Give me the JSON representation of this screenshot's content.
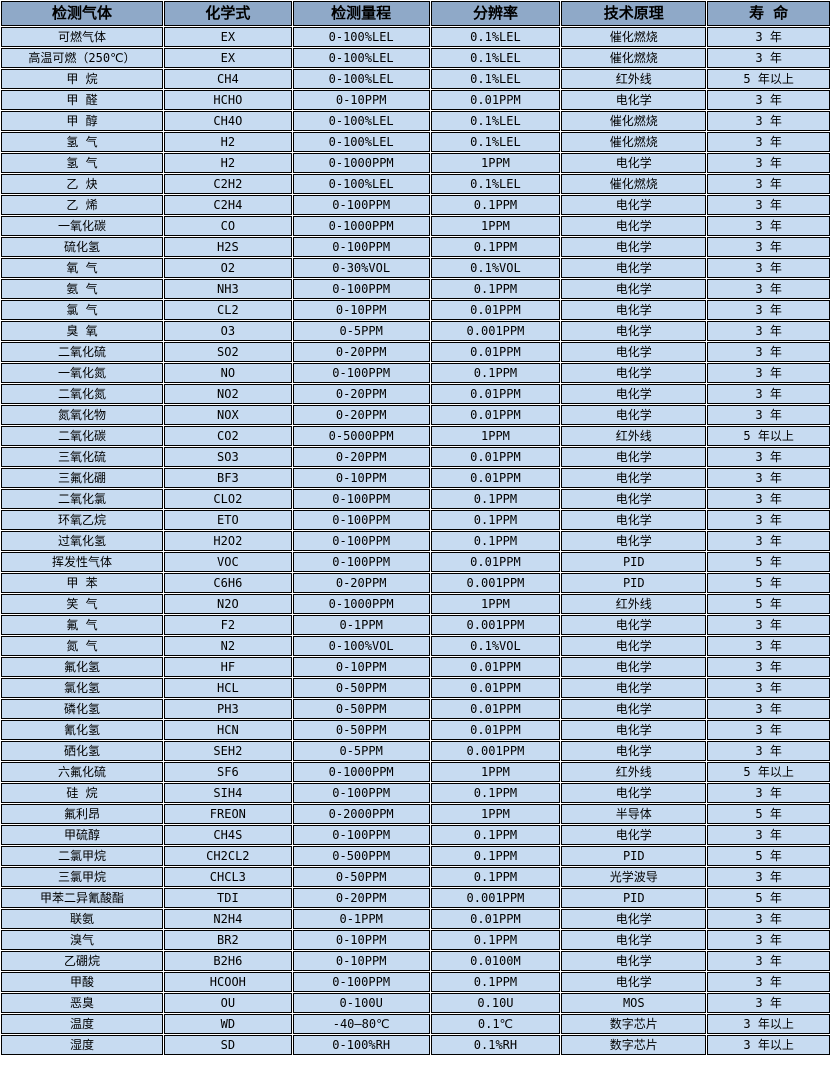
{
  "colors": {
    "header_bg": "#8FA9C8",
    "row_bg": "#C7DBF1",
    "border": "#000000",
    "grid_gap": "#FFFFFF",
    "text": "#000000"
  },
  "table": {
    "columns": [
      "检测气体",
      "化学式",
      "检测量程",
      "分辨率",
      "技术原理",
      "寿  命"
    ],
    "column_keys": [
      "gas",
      "formula",
      "range",
      "resolution",
      "principle",
      "lifespan"
    ],
    "rows": [
      [
        "可燃气体",
        "EX",
        "0-100%LEL",
        "0.1%LEL",
        "催化燃烧",
        "3 年"
      ],
      [
        "高温可燃（250℃）",
        "EX",
        "0-100%LEL",
        "0.1%LEL",
        "催化燃烧",
        "3 年"
      ],
      [
        "甲 烷",
        "CH4",
        "0-100%LEL",
        "0.1%LEL",
        "红外线",
        "5 年以上"
      ],
      [
        "甲 醛",
        "HCHO",
        "0-10PPM",
        "0.01PPM",
        "电化学",
        "3 年"
      ],
      [
        "甲 醇",
        "CH4O",
        "0-100%LEL",
        "0.1%LEL",
        "催化燃烧",
        "3 年"
      ],
      [
        "氢 气",
        "H2",
        "0-100%LEL",
        "0.1%LEL",
        "催化燃烧",
        "3 年"
      ],
      [
        "氢 气",
        "H2",
        "0-1000PPM",
        "1PPM",
        "电化学",
        "3 年"
      ],
      [
        "乙 炔",
        "C2H2",
        "0-100%LEL",
        "0.1%LEL",
        "催化燃烧",
        "3 年"
      ],
      [
        "乙 烯",
        "C2H4",
        "0-100PPM",
        "0.1PPM",
        "电化学",
        "3 年"
      ],
      [
        "一氧化碳",
        "CO",
        "0-1000PPM",
        "1PPM",
        "电化学",
        "3 年"
      ],
      [
        "硫化氢",
        "H2S",
        "0-100PPM",
        "0.1PPM",
        "电化学",
        "3 年"
      ],
      [
        "氧 气",
        "O2",
        "0-30%VOL",
        "0.1%VOL",
        "电化学",
        "3 年"
      ],
      [
        "氨 气",
        "NH3",
        "0-100PPM",
        "0.1PPM",
        "电化学",
        "3 年"
      ],
      [
        "氯 气",
        "CL2",
        "0-10PPM",
        "0.01PPM",
        "电化学",
        "3 年"
      ],
      [
        "臭 氧",
        "O3",
        "0-5PPM",
        "0.001PPM",
        "电化学",
        "3 年"
      ],
      [
        "二氧化硫",
        "SO2",
        "0-20PPM",
        "0.01PPM",
        "电化学",
        "3 年"
      ],
      [
        "一氧化氮",
        "NO",
        "0-100PPM",
        "0.1PPM",
        "电化学",
        "3 年"
      ],
      [
        "二氧化氮",
        "NO2",
        "0-20PPM",
        "0.01PPM",
        "电化学",
        "3 年"
      ],
      [
        "氮氧化物",
        "NOX",
        "0-20PPM",
        "0.01PPM",
        "电化学",
        "3 年"
      ],
      [
        "二氧化碳",
        "CO2",
        "0-5000PPM",
        "1PPM",
        "红外线",
        "5 年以上"
      ],
      [
        "三氧化硫",
        "SO3",
        "0-20PPM",
        "0.01PPM",
        "电化学",
        "3 年"
      ],
      [
        "三氟化硼",
        "BF3",
        "0-10PPM",
        "0.01PPM",
        "电化学",
        "3 年"
      ],
      [
        "二氧化氯",
        "CLO2",
        "0-100PPM",
        "0.1PPM",
        "电化学",
        "3 年"
      ],
      [
        "环氧乙烷",
        "ETO",
        "0-100PPM",
        "0.1PPM",
        "电化学",
        "3 年"
      ],
      [
        "过氧化氢",
        "H2O2",
        "0-100PPM",
        "0.1PPM",
        "电化学",
        "3 年"
      ],
      [
        "挥发性气体",
        "VOC",
        "0-100PPM",
        "0.01PPM",
        "PID",
        "5 年"
      ],
      [
        "甲 苯",
        "C6H6",
        "0-20PPM",
        "0.001PPM",
        "PID",
        "5 年"
      ],
      [
        "笑 气",
        "N2O",
        "0-1000PPM",
        "1PPM",
        "红外线",
        "5 年"
      ],
      [
        "氟 气",
        "F2",
        "0-1PPM",
        "0.001PPM",
        "电化学",
        "3 年"
      ],
      [
        "氮 气",
        "N2",
        "0-100%VOL",
        "0.1%VOL",
        "电化学",
        "3 年"
      ],
      [
        "氟化氢",
        "HF",
        "0-10PPM",
        "0.01PPM",
        "电化学",
        "3 年"
      ],
      [
        "氯化氢",
        "HCL",
        "0-50PPM",
        "0.01PPM",
        "电化学",
        "3 年"
      ],
      [
        "磷化氢",
        "PH3",
        "0-50PPM",
        "0.01PPM",
        "电化学",
        "3 年"
      ],
      [
        "氰化氢",
        "HCN",
        "0-50PPM",
        "0.01PPM",
        "电化学",
        "3 年"
      ],
      [
        "硒化氢",
        "SEH2",
        "0-5PPM",
        "0.001PPM",
        "电化学",
        "3 年"
      ],
      [
        "六氟化硫",
        "SF6",
        "0-1000PPM",
        "1PPM",
        "红外线",
        "5 年以上"
      ],
      [
        "硅 烷",
        "SIH4",
        "0-100PPM",
        "0.1PPM",
        "电化学",
        "3 年"
      ],
      [
        "氟利昂",
        "FREON",
        "0-2000PPM",
        "1PPM",
        "半导体",
        "5 年"
      ],
      [
        "甲硫醇",
        "CH4S",
        "0-100PPM",
        "0.1PPM",
        "电化学",
        "3 年"
      ],
      [
        "二氯甲烷",
        "CH2CL2",
        "0-500PPM",
        "0.1PPM",
        "PID",
        "5 年"
      ],
      [
        "三氯甲烷",
        "CHCL3",
        "0-50PPM",
        "0.1PPM",
        "光学波导",
        "3 年"
      ],
      [
        "甲苯二异氰酸酯",
        "TDI",
        "0-20PPM",
        "0.001PPM",
        "PID",
        "5 年"
      ],
      [
        "联氨",
        "N2H4",
        "0-1PPM",
        "0.01PPM",
        "电化学",
        "3 年"
      ],
      [
        "溴气",
        "BR2",
        "0-10PPM",
        "0.1PPM",
        "电化学",
        "3 年"
      ],
      [
        "乙硼烷",
        "B2H6",
        "0-10PPM",
        "0.0100M",
        "电化学",
        "3 年"
      ],
      [
        "甲酸",
        "HCOOH",
        "0-100PPM",
        "0.1PPM",
        "电化学",
        "3 年"
      ],
      [
        "恶臭",
        "OU",
        "0-100U",
        "0.10U",
        "MOS",
        "3 年"
      ],
      [
        "温度",
        "WD",
        "-40—80℃",
        "0.1℃",
        "数字芯片",
        "3 年以上"
      ],
      [
        "湿度",
        "SD",
        "0-100%RH",
        "0.1%RH",
        "数字芯片",
        "3 年以上"
      ]
    ]
  }
}
